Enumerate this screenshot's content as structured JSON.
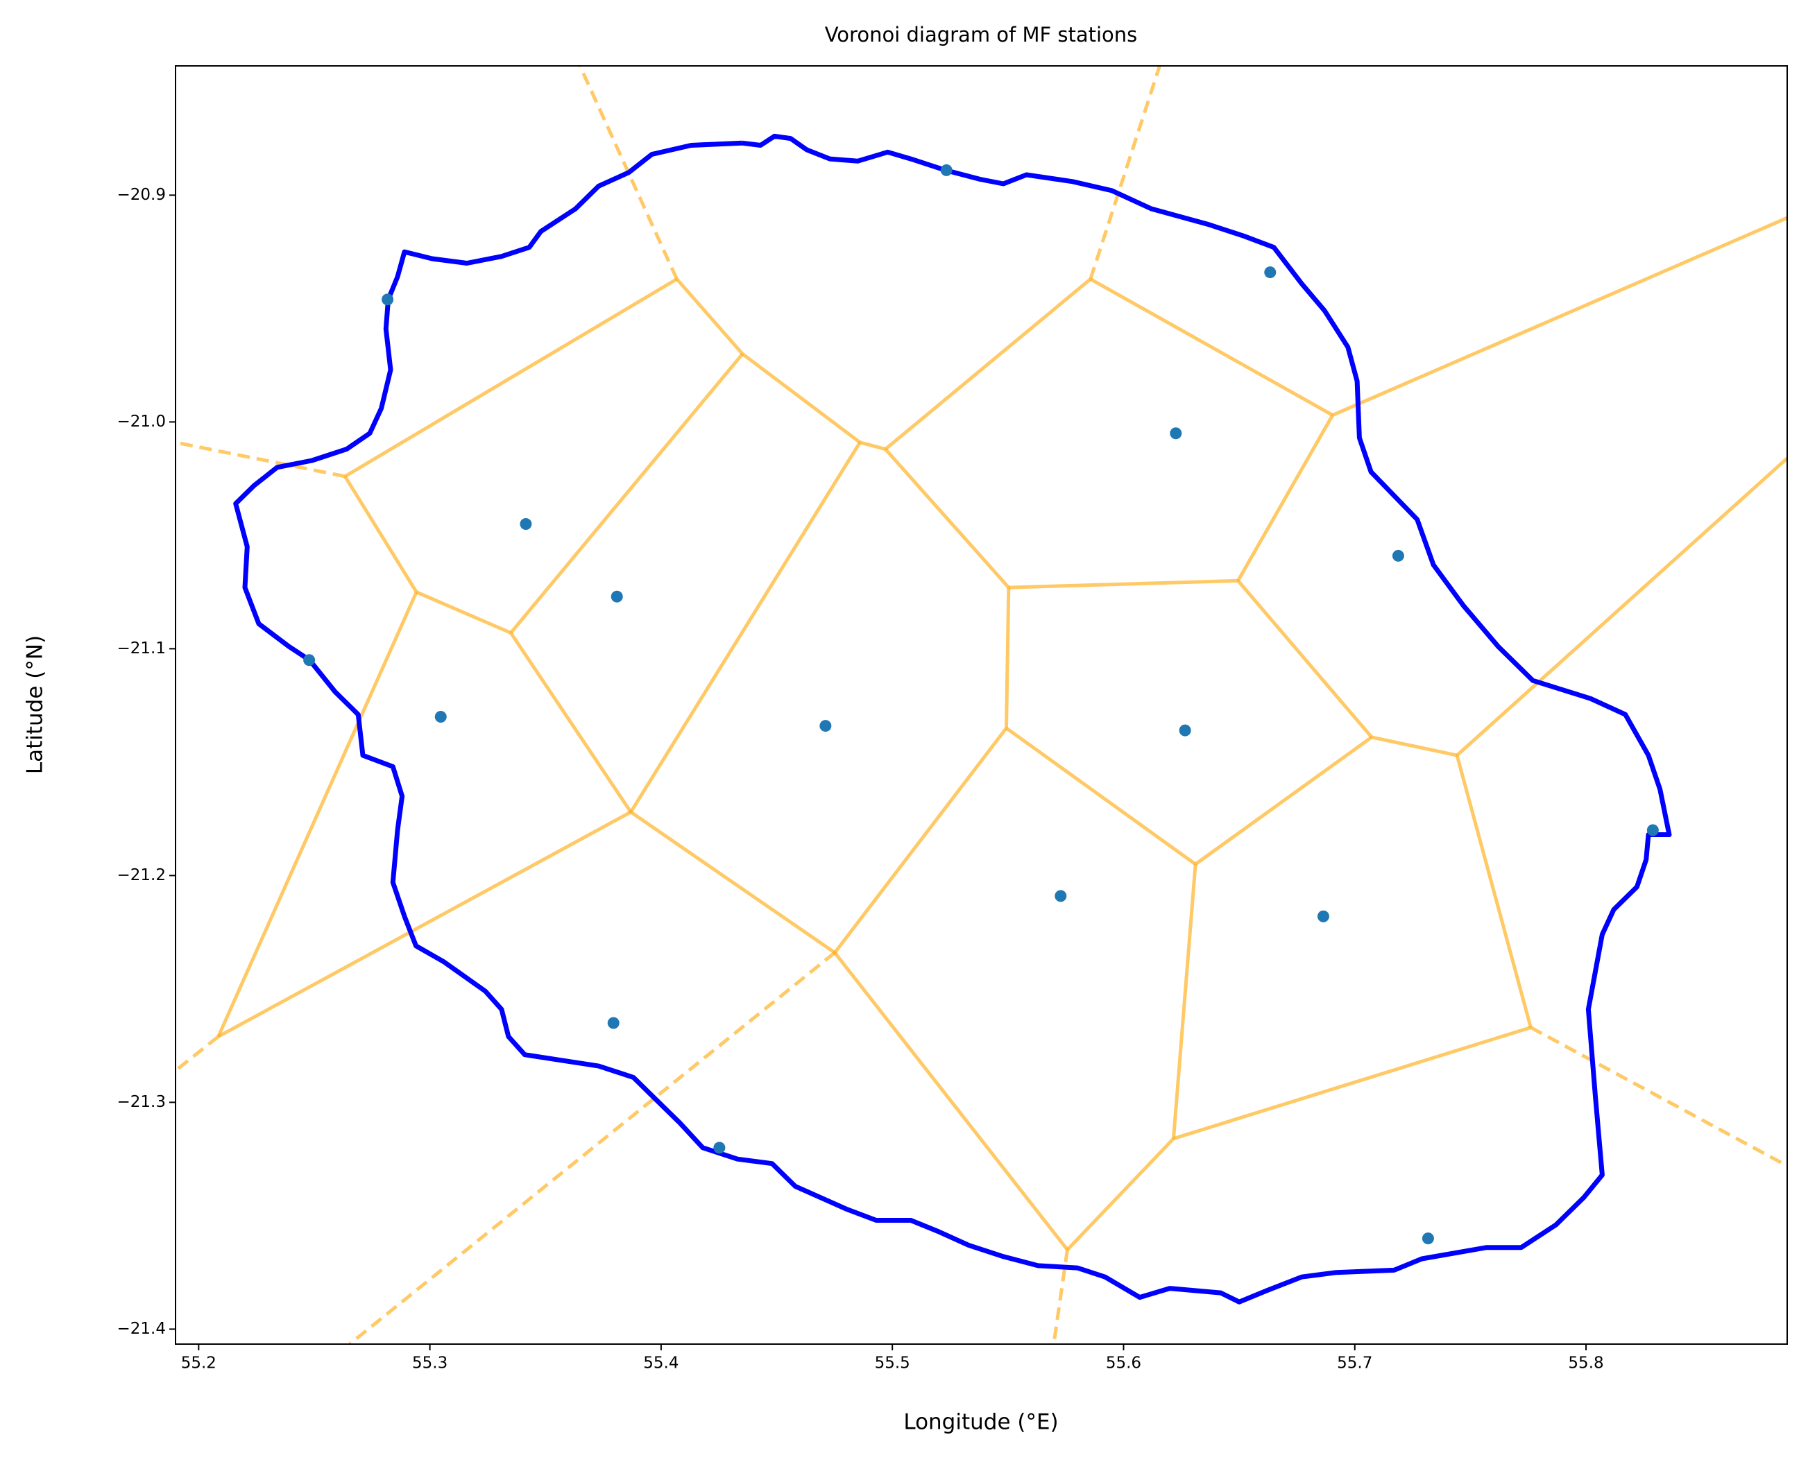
{
  "chart_data": {
    "type": "scatter",
    "title": "Voronoi diagram of MF stations",
    "x_label": "Longitude (°E)",
    "y_label": "Latitude (°N)",
    "xlim": [
      55.19,
      55.887
    ],
    "ylim": [
      -21.4066,
      -20.843
    ],
    "xticks": [
      55.2,
      55.3,
      55.4,
      55.5,
      55.6,
      55.7,
      55.8
    ],
    "yticks": [
      {
        "value": -20.9,
        "label": "−20.9"
      },
      {
        "value": -21.0,
        "label": "−21.0"
      },
      {
        "value": -21.1,
        "label": "−21.1"
      },
      {
        "value": -21.2,
        "label": "−21.2"
      },
      {
        "value": -21.3,
        "label": "−21.3"
      },
      {
        "value": -21.4,
        "label": "−21.4"
      }
    ],
    "color": "#1f77b4",
    "x": [
      55.5234,
      55.6634,
      55.2817,
      55.6226,
      55.3415,
      55.7188,
      55.3809,
      55.2478,
      55.3047,
      55.4711,
      55.6266,
      55.8289,
      55.5728,
      55.6864,
      55.3794,
      55.4252,
      55.7317
    ],
    "y": [
      -20.889,
      -20.934,
      -20.946,
      -21.005,
      -21.045,
      -21.059,
      -21.077,
      -21.105,
      -21.13,
      -21.134,
      -21.136,
      -21.18,
      -21.209,
      -21.218,
      -21.265,
      -21.32,
      -21.36
    ],
    "coastline": {
      "color": "#0000ff",
      "x": [
        55.435,
        55.413,
        55.396,
        55.386,
        55.373,
        55.363,
        55.348,
        55.343,
        55.331,
        55.316,
        55.301,
        55.289,
        55.286,
        55.282,
        55.281,
        55.283,
        55.279,
        55.274,
        55.264,
        55.249,
        55.234,
        55.224,
        55.216,
        55.221,
        55.22,
        55.226,
        55.239,
        55.248,
        55.259,
        55.269,
        55.271,
        55.284,
        55.288,
        55.286,
        55.284,
        55.289,
        55.294,
        55.306,
        55.324,
        55.331,
        55.334,
        55.341,
        55.373,
        55.388,
        55.398,
        55.408,
        55.418,
        55.433,
        55.448,
        55.458,
        55.48,
        55.493,
        55.508,
        55.52,
        55.533,
        55.548,
        55.563,
        55.58,
        55.592,
        55.607,
        55.62,
        55.642,
        55.65,
        55.662,
        55.677,
        55.692,
        55.717,
        55.729,
        55.757,
        55.772,
        55.787,
        55.799,
        55.807,
        55.804,
        55.801,
        55.807,
        55.812,
        55.822,
        55.826,
        55.827,
        55.836,
        55.832,
        55.827,
        55.817,
        55.802,
        55.777,
        55.762,
        55.747,
        55.734,
        55.727,
        55.707,
        55.702,
        55.701,
        55.697,
        55.687,
        55.677,
        55.665,
        55.652,
        55.637,
        55.612,
        55.595,
        55.578,
        55.558,
        55.548,
        55.538,
        55.523,
        55.508,
        55.498,
        55.485,
        55.473,
        55.463,
        55.456,
        55.449,
        55.443,
        55.435
      ],
      "y": [
        -20.877,
        -20.878,
        -20.882,
        -20.89,
        -20.896,
        -20.906,
        -20.916,
        -20.923,
        -20.927,
        -20.93,
        -20.928,
        -20.925,
        -20.936,
        -20.946,
        -20.959,
        -20.977,
        -20.994,
        -21.005,
        -21.012,
        -21.017,
        -21.02,
        -21.028,
        -21.036,
        -21.055,
        -21.073,
        -21.089,
        -21.099,
        -21.105,
        -21.119,
        -21.129,
        -21.147,
        -21.152,
        -21.165,
        -21.18,
        -21.203,
        -21.218,
        -21.231,
        -21.238,
        -21.251,
        -21.259,
        -21.271,
        -21.279,
        -21.284,
        -21.289,
        -21.299,
        -21.309,
        -21.32,
        -21.325,
        -21.327,
        -21.337,
        -21.347,
        -21.352,
        -21.352,
        -21.357,
        -21.363,
        -21.368,
        -21.372,
        -21.373,
        -21.377,
        -21.386,
        -21.382,
        -21.384,
        -21.388,
        -21.383,
        -21.377,
        -21.375,
        -21.374,
        -21.369,
        -21.364,
        -21.364,
        -21.354,
        -21.342,
        -21.332,
        -21.297,
        -21.259,
        -21.226,
        -21.215,
        -21.205,
        -21.193,
        -21.182,
        -21.182,
        -21.162,
        -21.147,
        -21.129,
        -21.122,
        -21.114,
        -21.099,
        -21.081,
        -21.063,
        -21.043,
        -21.022,
        -21.007,
        -20.982,
        -20.967,
        -20.951,
        -20.939,
        -20.923,
        -20.918,
        -20.913,
        -20.906,
        -20.898,
        -20.894,
        -20.891,
        -20.895,
        -20.893,
        -20.889,
        -20.884,
        -20.881,
        -20.885,
        -20.884,
        -20.88,
        -20.875,
        -20.874,
        -20.878,
        -20.877
      ]
    },
    "ridges": {
      "color": "#ffa500",
      "finite": [
        {
          "x": [
            55.4068,
            55.4352
          ],
          "y": [
            -20.937,
            -20.97
          ]
        },
        {
          "x": [
            55.4068,
            55.2633
          ],
          "y": [
            -20.937,
            -21.024
          ]
        },
        {
          "x": [
            55.4352,
            55.335
          ],
          "y": [
            -20.97,
            -21.093
          ]
        },
        {
          "x": [
            55.4352,
            55.486
          ],
          "y": [
            -20.97,
            -21.009
          ]
        },
        {
          "x": [
            55.486,
            55.497
          ],
          "y": [
            -21.009,
            -21.012
          ]
        },
        {
          "x": [
            55.486,
            55.3869
          ],
          "y": [
            -21.009,
            -21.172
          ]
        },
        {
          "x": [
            55.497,
            55.5857
          ],
          "y": [
            -21.012,
            -20.937
          ]
        },
        {
          "x": [
            55.497,
            55.5503
          ],
          "y": [
            -21.012,
            -21.073
          ]
        },
        {
          "x": [
            55.5857,
            55.6904
          ],
          "y": [
            -20.937,
            -20.997
          ]
        },
        {
          "x": [
            55.6904,
            55.6495
          ],
          "y": [
            -20.997,
            -21.07
          ]
        },
        {
          "x": [
            55.5503,
            55.6495
          ],
          "y": [
            -21.073,
            -21.07
          ]
        },
        {
          "x": [
            55.5503,
            55.5493
          ],
          "y": [
            -21.073,
            -21.135
          ]
        },
        {
          "x": [
            55.6495,
            55.7073
          ],
          "y": [
            -21.07,
            -21.139
          ]
        },
        {
          "x": [
            55.7073,
            55.7442
          ],
          "y": [
            -21.139,
            -21.147
          ]
        },
        {
          "x": [
            55.7073,
            55.6311
          ],
          "y": [
            -21.139,
            -21.195
          ]
        },
        {
          "x": [
            55.5493,
            55.6311
          ],
          "y": [
            -21.135,
            -21.195
          ]
        },
        {
          "x": [
            55.5493,
            55.4751
          ],
          "y": [
            -21.135,
            -21.234
          ]
        },
        {
          "x": [
            55.6311,
            55.6216
          ],
          "y": [
            -21.195,
            -21.316
          ]
        },
        {
          "x": [
            55.4751,
            55.3869
          ],
          "y": [
            -21.234,
            -21.172
          ]
        },
        {
          "x": [
            55.4751,
            55.5757
          ],
          "y": [
            -21.234,
            -21.365
          ]
        },
        {
          "x": [
            55.6216,
            55.5757
          ],
          "y": [
            -21.316,
            -21.365
          ]
        },
        {
          "x": [
            55.6216,
            55.7761
          ],
          "y": [
            -21.316,
            -21.267
          ]
        },
        {
          "x": [
            55.7761,
            55.7442
          ],
          "y": [
            -21.267,
            -21.147
          ]
        },
        {
          "x": [
            55.2633,
            55.2942
          ],
          "y": [
            -21.024,
            -21.075
          ]
        },
        {
          "x": [
            55.2942,
            55.335
          ],
          "y": [
            -21.075,
            -21.093
          ]
        },
        {
          "x": [
            55.335,
            55.3869
          ],
          "y": [
            -21.093,
            -21.172
          ]
        },
        {
          "x": [
            55.2942,
            55.2085
          ],
          "y": [
            -21.075,
            -21.271
          ]
        },
        {
          "x": [
            55.2085,
            55.3869
          ],
          "y": [
            -21.271,
            -21.172
          ]
        },
        {
          "x": [
            55.6904,
            55.887
          ],
          "y": [
            -20.997,
            -20.91
          ]
        },
        {
          "x": [
            55.7442,
            55.887
          ],
          "y": [
            -21.147,
            -21.016
          ]
        }
      ],
      "infinite": [
        {
          "x": [
            55.4068,
            55.3649
          ],
          "y": [
            -20.937,
            -20.843
          ]
        },
        {
          "x": [
            55.5857,
            55.6156
          ],
          "y": [
            -20.937,
            -20.843
          ]
        },
        {
          "x": [
            55.2633,
            55.19
          ],
          "y": [
            -21.024,
            -21.009
          ]
        },
        {
          "x": [
            55.2085,
            55.19
          ],
          "y": [
            -21.271,
            -21.286
          ]
        },
        {
          "x": [
            55.4751,
            55.2653
          ],
          "y": [
            -21.234,
            -21.4066
          ]
        },
        {
          "x": [
            55.5757,
            55.5698
          ],
          "y": [
            -21.365,
            -21.4066
          ]
        },
        {
          "x": [
            55.7761,
            55.887
          ],
          "y": [
            -21.267,
            -21.328
          ]
        }
      ]
    }
  }
}
